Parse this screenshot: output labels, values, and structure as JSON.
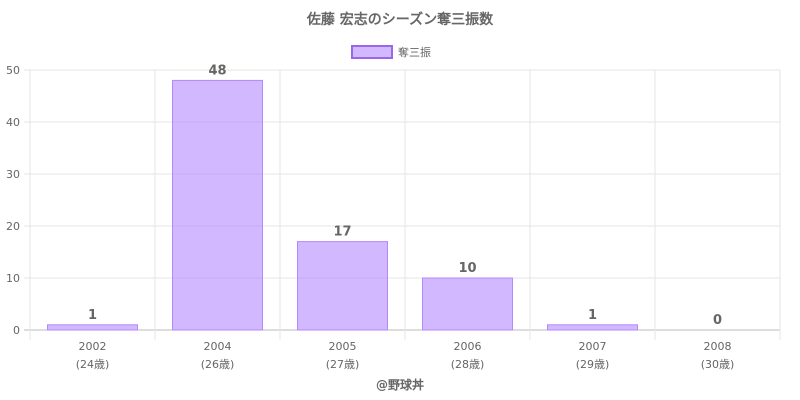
{
  "chart_data": {
    "type": "bar",
    "title": "佐藤 宏志のシーズン奪三振数",
    "categories": [
      "2002",
      "2004",
      "2005",
      "2006",
      "2007",
      "2008"
    ],
    "category_sublabels": [
      "(24歳)",
      "(26歳)",
      "(27歳)",
      "(28歳)",
      "(29歳)",
      "(30歳)"
    ],
    "series": [
      {
        "name": "奪三振",
        "values": [
          1,
          48,
          17,
          10,
          1,
          0
        ],
        "color": "#b388ff"
      }
    ],
    "ylim": [
      0,
      50
    ],
    "yticks": [
      0,
      10,
      20,
      30,
      40,
      50
    ],
    "grid": true,
    "legend": "top-center",
    "data_labels": true
  },
  "credit": "@野球丼"
}
